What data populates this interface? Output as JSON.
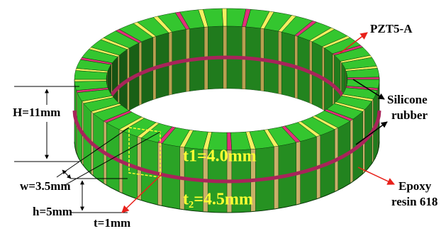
{
  "labels": {
    "pzt": "PZT5-A",
    "silicone": [
      "Silicone",
      "rubber"
    ],
    "height": "H=11mm",
    "width": "w=3.5mm",
    "h": "h=5mm",
    "t": "t=1mm",
    "t1": "t1=4.0mm",
    "t2": "t₂=4.5mm",
    "epoxy": [
      "Epoxy",
      "resin 618"
    ]
  }
}
